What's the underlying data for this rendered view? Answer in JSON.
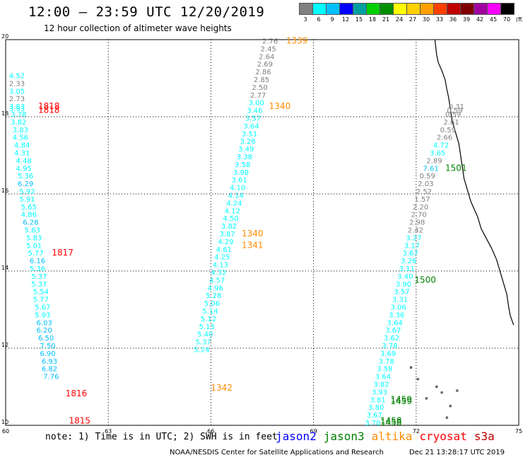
{
  "title": "12:00 – 23:59 UTC 12/20/2019",
  "subtitle": "12 hour collection of altimeter wave heights",
  "legend": {
    "labels": [
      "3",
      "6",
      "9",
      "12",
      "15",
      "18",
      "21",
      "24",
      "27",
      "30",
      "33",
      "36",
      "39",
      "42",
      "45",
      "70",
      "(ft)"
    ],
    "colors": [
      "#808080",
      "#00ffff",
      "#00c0ff",
      "#0000ff",
      "#00a0a0",
      "#00d000",
      "#009000",
      "#ffff00",
      "#ffd000",
      "#ffa000",
      "#ff4000",
      "#c00000",
      "#800000",
      "#a000a0",
      "#ff00ff",
      "#000000"
    ]
  },
  "map": {
    "lon_range": [
      60,
      75
    ],
    "lat_range": [
      10,
      20
    ],
    "lon_ticks": [
      "60",
      "63",
      "66",
      "69",
      "72",
      "75"
    ],
    "lat_ticks": [
      {
        "value": 10,
        "label": "10"
      },
      {
        "value": 12,
        "label": "12"
      },
      {
        "value": 14,
        "label": "14"
      },
      {
        "value": 16,
        "label": "16"
      },
      {
        "value": 18,
        "label": "18"
      },
      {
        "value": 20,
        "label": "20"
      }
    ],
    "grid": true
  },
  "pass_labels": [
    {
      "text": "1339",
      "lon": 68.2,
      "lat": 19.9,
      "color": "#ff8c00"
    },
    {
      "text": "1340",
      "lon": 67.7,
      "lat": 18.2,
      "color": "#ff8c00"
    },
    {
      "text": "1340",
      "lon": 66.9,
      "lat": 14.9,
      "color": "#ff8c00"
    },
    {
      "text": "1341",
      "lon": 66.9,
      "lat": 14.6,
      "color": "#ff8c00"
    },
    {
      "text": "1342",
      "lon": 66.0,
      "lat": 10.9,
      "color": "#ff8c00"
    },
    {
      "text": "1818",
      "lon": 60.95,
      "lat": 18.2,
      "color": "#ff0000"
    },
    {
      "text": "1818",
      "lon": 60.95,
      "lat": 18.1,
      "color": "#ff0000"
    },
    {
      "text": "1817",
      "lon": 61.35,
      "lat": 14.4,
      "color": "#ff0000"
    },
    {
      "text": "1816",
      "lon": 61.75,
      "lat": 10.75,
      "color": "#ff0000"
    },
    {
      "text": "1815",
      "lon": 61.85,
      "lat": 10.05,
      "color": "#ff0000"
    },
    {
      "text": "1501",
      "lon": 72.85,
      "lat": 16.6,
      "color": "#008000"
    },
    {
      "text": "1500",
      "lon": 71.95,
      "lat": 13.7,
      "color": "#008000"
    },
    {
      "text": "1459",
      "lon": 71.25,
      "lat": 10.6,
      "color": "#008000"
    },
    {
      "text": "1459",
      "lon": 71.25,
      "lat": 10.55,
      "color": "#008000"
    },
    {
      "text": "1458",
      "lon": 70.95,
      "lat": 10.05,
      "color": "#008000"
    },
    {
      "text": "1458",
      "lon": 70.95,
      "lat": 10.0,
      "color": "#008000"
    }
  ],
  "tracks": [
    {
      "name": "cryosat",
      "color_rule": "value",
      "points": [
        [
          60.1,
          19.0,
          4.52
        ],
        [
          60.1,
          18.8,
          2.33
        ],
        [
          60.1,
          18.6,
          3.05
        ],
        [
          60.1,
          18.4,
          2.73
        ],
        [
          60.1,
          18.2,
          3.83
        ],
        [
          60.1,
          18.15,
          3.93
        ],
        [
          60.15,
          18.0,
          3.78
        ],
        [
          60.15,
          17.8,
          3.82
        ],
        [
          60.2,
          17.6,
          3.83
        ],
        [
          60.2,
          17.4,
          4.56
        ],
        [
          60.25,
          17.2,
          4.84
        ],
        [
          60.25,
          17.0,
          4.31
        ],
        [
          60.3,
          16.8,
          4.48
        ],
        [
          60.3,
          16.6,
          4.95
        ],
        [
          60.35,
          16.4,
          5.36
        ],
        [
          60.35,
          16.2,
          6.29
        ],
        [
          60.4,
          16.0,
          5.92
        ],
        [
          60.4,
          15.8,
          5.91
        ],
        [
          60.45,
          15.6,
          5.65
        ],
        [
          60.45,
          15.4,
          4.86
        ],
        [
          60.5,
          15.2,
          6.28
        ],
        [
          60.55,
          15.0,
          5.63
        ],
        [
          60.6,
          14.8,
          5.83
        ],
        [
          60.6,
          14.6,
          5.01
        ],
        [
          60.65,
          14.4,
          5.77
        ],
        [
          60.7,
          14.2,
          6.16
        ],
        [
          60.7,
          14.0,
          5.36
        ],
        [
          60.75,
          13.8,
          5.37
        ],
        [
          60.75,
          13.6,
          5.37
        ],
        [
          60.8,
          13.4,
          5.54
        ],
        [
          60.8,
          13.2,
          5.77
        ],
        [
          60.85,
          13.0,
          5.67
        ],
        [
          60.85,
          12.8,
          5.93
        ],
        [
          60.9,
          12.6,
          6.03
        ],
        [
          60.9,
          12.4,
          6.2
        ],
        [
          60.95,
          12.2,
          6.5
        ],
        [
          61.0,
          12.0,
          7.5
        ],
        [
          61.0,
          11.8,
          6.9
        ],
        [
          61.05,
          11.6,
          6.93
        ],
        [
          61.05,
          11.4,
          6.82
        ],
        [
          61.1,
          11.2,
          7.76
        ]
      ]
    },
    {
      "name": "altika",
      "color_rule": "value",
      "points": [
        [
          67.5,
          19.9,
          2.76
        ],
        [
          67.45,
          19.7,
          2.45
        ],
        [
          67.4,
          19.5,
          2.64
        ],
        [
          67.35,
          19.3,
          2.69
        ],
        [
          67.3,
          19.1,
          2.86
        ],
        [
          67.25,
          18.9,
          2.85
        ],
        [
          67.2,
          18.7,
          2.5
        ],
        [
          67.15,
          18.5,
          2.77
        ],
        [
          67.1,
          18.3,
          3.0
        ],
        [
          67.05,
          18.1,
          3.46
        ],
        [
          67.0,
          17.9,
          3.57
        ],
        [
          66.95,
          17.7,
          3.64
        ],
        [
          66.9,
          17.5,
          3.51
        ],
        [
          66.85,
          17.3,
          3.26
        ],
        [
          66.8,
          17.1,
          3.49
        ],
        [
          66.75,
          16.9,
          3.38
        ],
        [
          66.7,
          16.7,
          3.58
        ],
        [
          66.65,
          16.5,
          3.98
        ],
        [
          66.6,
          16.3,
          3.61
        ],
        [
          66.55,
          16.1,
          4.1
        ],
        [
          66.5,
          15.9,
          4.14
        ],
        [
          66.45,
          15.7,
          4.24
        ],
        [
          66.4,
          15.5,
          4.12
        ],
        [
          66.35,
          15.3,
          4.5
        ],
        [
          66.3,
          15.1,
          3.82
        ],
        [
          66.25,
          14.9,
          3.87
        ],
        [
          66.2,
          14.7,
          4.29
        ],
        [
          66.15,
          14.5,
          4.61
        ],
        [
          66.1,
          14.3,
          4.25
        ],
        [
          66.05,
          14.1,
          4.13
        ],
        [
          66.0,
          13.9,
          4.32
        ],
        [
          65.95,
          13.7,
          4.57
        ],
        [
          65.9,
          13.5,
          4.96
        ],
        [
          65.85,
          13.3,
          5.28
        ],
        [
          65.8,
          13.1,
          5.06
        ],
        [
          65.75,
          12.9,
          5.14
        ],
        [
          65.7,
          12.7,
          5.12
        ],
        [
          65.65,
          12.5,
          5.13
        ],
        [
          65.6,
          12.3,
          5.4
        ],
        [
          65.55,
          12.1,
          5.37
        ],
        [
          65.5,
          11.9,
          5.24
        ]
      ]
    },
    {
      "name": "jason3",
      "color_rule": "value",
      "points": [
        [
          72.95,
          18.2,
          0.31
        ],
        [
          72.9,
          18.1,
          0.59
        ],
        [
          72.85,
          18.0,
          0.59
        ],
        [
          72.8,
          17.8,
          2.61
        ],
        [
          72.7,
          17.6,
          0.59
        ],
        [
          72.6,
          17.4,
          2.66
        ],
        [
          72.5,
          17.2,
          4.72
        ],
        [
          72.4,
          17.0,
          3.65
        ],
        [
          72.3,
          16.8,
          2.89
        ],
        [
          72.2,
          16.6,
          7.61
        ],
        [
          72.1,
          16.4,
          0.59
        ],
        [
          72.05,
          16.2,
          2.03
        ],
        [
          72.0,
          16.0,
          2.52
        ],
        [
          71.95,
          15.8,
          1.57
        ],
        [
          71.9,
          15.6,
          2.2
        ],
        [
          71.85,
          15.4,
          2.7
        ],
        [
          71.8,
          15.2,
          2.98
        ],
        [
          71.75,
          15.0,
          2.42
        ],
        [
          71.7,
          14.8,
          3.27
        ],
        [
          71.65,
          14.6,
          3.17
        ],
        [
          71.6,
          14.4,
          3.67
        ],
        [
          71.55,
          14.2,
          3.26
        ],
        [
          71.5,
          14.0,
          3.11
        ],
        [
          71.45,
          13.8,
          3.4
        ],
        [
          71.4,
          13.6,
          3.9
        ],
        [
          71.35,
          13.4,
          3.57
        ],
        [
          71.3,
          13.2,
          3.31
        ],
        [
          71.25,
          13.0,
          3.06
        ],
        [
          71.2,
          12.8,
          3.36
        ],
        [
          71.15,
          12.6,
          3.64
        ],
        [
          71.1,
          12.4,
          3.67
        ],
        [
          71.05,
          12.2,
          3.62
        ],
        [
          71.0,
          12.0,
          3.78
        ],
        [
          70.95,
          11.8,
          3.69
        ],
        [
          70.9,
          11.6,
          3.78
        ],
        [
          70.85,
          11.4,
          3.58
        ],
        [
          70.8,
          11.2,
          3.64
        ],
        [
          70.75,
          11.0,
          3.82
        ],
        [
          70.7,
          10.8,
          3.93
        ],
        [
          70.65,
          10.6,
          3.81
        ],
        [
          70.6,
          10.4,
          3.8
        ],
        [
          70.55,
          10.2,
          3.67
        ],
        [
          70.5,
          10.0,
          3.7
        ]
      ]
    }
  ],
  "note": "note: 1) Time is in UTC; 2) SWH is in feet",
  "satellites": [
    {
      "name": "jason2",
      "color": "#0000ff"
    },
    {
      "name": "jason3",
      "color": "#008000"
    },
    {
      "name": "altika",
      "color": "#ff8c00"
    },
    {
      "name": "cryosat",
      "color": "#ff0000"
    },
    {
      "name": "s3a",
      "color": "#c00000"
    }
  ],
  "credit": "NOAA/NESDIS Center for Satellite Applications and Research",
  "timestamp": "Dec 21 13:28:17 UTC 2019"
}
